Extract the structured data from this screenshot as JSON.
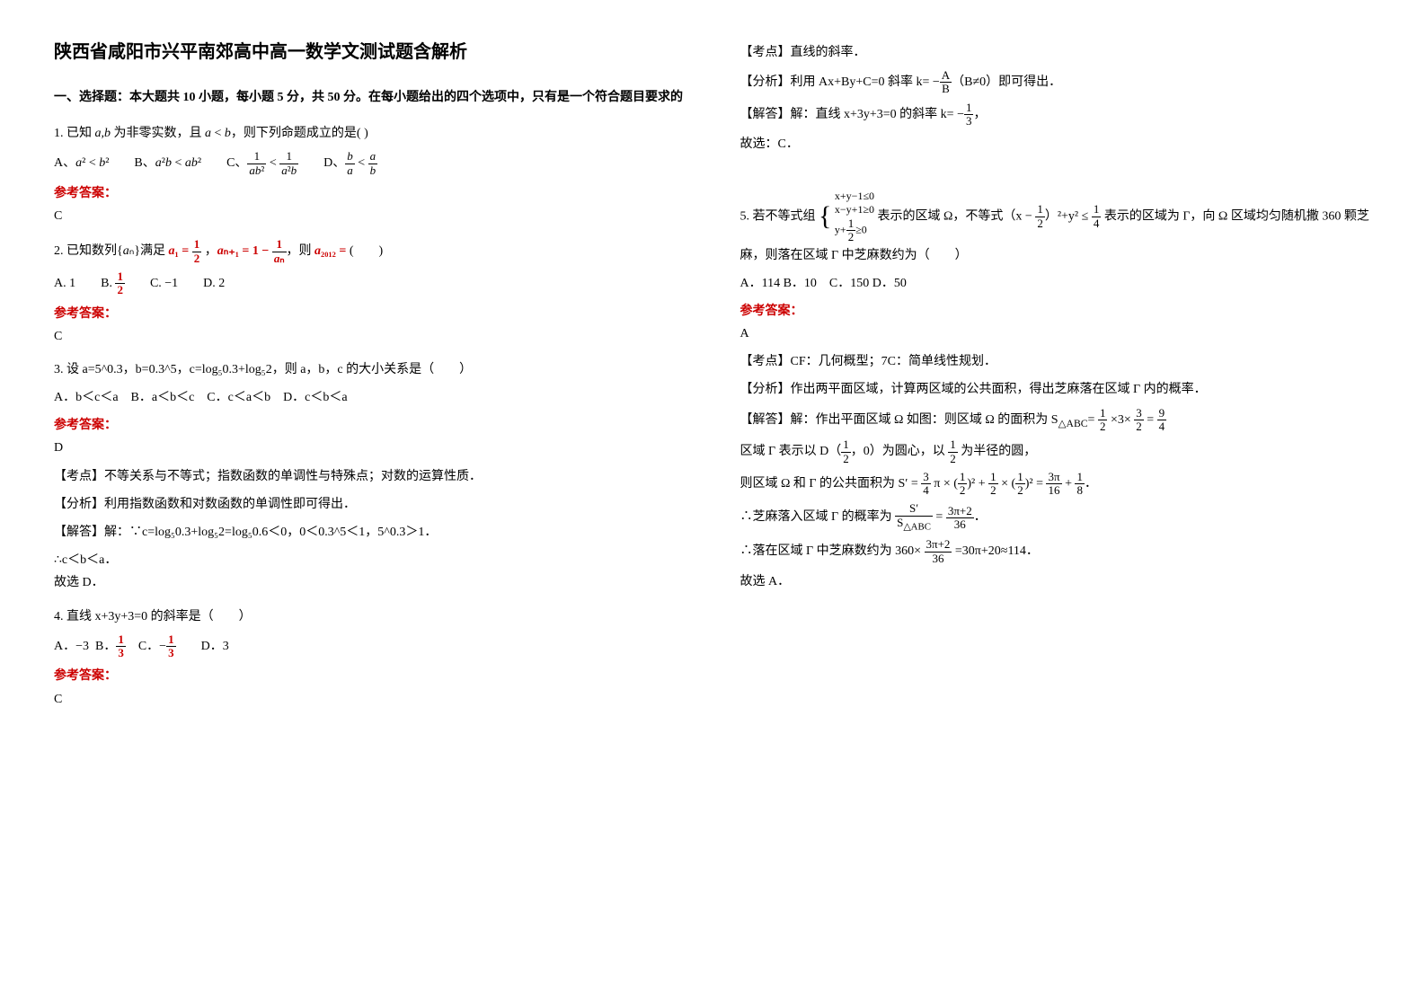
{
  "title": "陕西省咸阳市兴平南郊高中高一数学文测试题含解析",
  "section1": {
    "header": "一、选择题：本大题共 10 小题，每小题 5 分，共 50 分。在每小题给出的四个选项中，只有是一个符合题目要求的"
  },
  "q1": {
    "stem": "1. 已知 a,b 为非零实数，且 a < b，则下列命题成立的是(  )",
    "options": "A、a² < b²　　B、a²b < ab²　　C、1/ab² < 1/a²b　　D、b/a < a/b",
    "answer_label": "参考答案：",
    "answer": "C"
  },
  "q2": {
    "stem_prefix": "2. 已知数列{aₙ}满足 ",
    "formula": "a₁ = 1/2 , aₙ₊₁ = 1 − 1/aₙ",
    "stem_suffix": "，则 a₂₀₁₂ = (　　)",
    "options": "A. 1　　B. 1/2　　C. −1　　D. 2",
    "answer_label": "参考答案：",
    "answer": "C"
  },
  "q3": {
    "stem": "3. 设 a=5^0.3，b=0.3^5，c=log₅0.3+log₅2，则 a，b，c 的大小关系是（　　）",
    "options": "A．b＜c＜a　B．a＜b＜c　C．c＜a＜b　D．c＜b＜a",
    "answer_label": "参考答案：",
    "answer": "D",
    "kaodian": "【考点】不等关系与不等式；指数函数的单调性与特殊点；对数的运算性质．",
    "fenxi": "【分析】利用指数函数和对数函数的单调性即可得出．",
    "jieda1": "【解答】解：∵c=log₅0.3+log₅2=log₅0.6＜0，0＜0.3^5＜1，5^0.3＞1．",
    "jieda2": "∴c＜b＜a．",
    "jieda3": "故选 D．"
  },
  "q4": {
    "stem": "4. 直线 x+3y+3=0 的斜率是（　　）",
    "options": "A．−3  B．1/3　C．−1/3　　D．3",
    "answer_label": "参考答案：",
    "answer": "C",
    "kaodian": "【考点】直线的斜率．",
    "fenxi": "【分析】利用 Ax+By+C=0 斜率 k= −A/B（B≠0）即可得出．",
    "jieda1": "【解答】解：直线 x+3y+3=0 的斜率 k= −1/3，",
    "jieda2": "故选：C．"
  },
  "q5": {
    "stem_prefix": "5. 若不等式组 ",
    "system": "⎧ x+y−1≤0\n⎨ x−y+1≥0\n⎩ y+1/2≥0",
    "stem_mid": " 表示的区域 Ω，不等式（x − 1/2）²+y² ≤ 1/4 表示的区域为 Γ，向 Ω 区域均匀随机撒 360 颗芝麻，则落在区域 Γ 中芝麻数约为（　　）",
    "options": "A．114 B．10　C．150 D．50",
    "answer_label": "参考答案：",
    "answer": "A",
    "kaodian": "【考点】CF：几何概型；7C：简单线性规划．",
    "fenxi": "【分析】作出两平面区域，计算两区域的公共面积，得出芝麻落在区域 Γ 内的概率．",
    "jieda1": "【解答】解：作出平面区域 Ω 如图：则区域 Ω 的面积为 S△ABC = 1/2 × 3 × 3/2 = 9/4",
    "jieda2": "区域 Γ 表示以 D（1/2，0）为圆心，以 1/2 为半径的圆，",
    "jieda3": "则区域 Ω 和 Γ 的公共面积为 S′ = 3/4 π × (1/2)² + 1/2 × (1/2)² = 3π/16 + 1/8．",
    "jieda4": "∴芝麻落入区域 Γ 的概率为 S′/S△ABC = (3π+2)/36．",
    "jieda5": "∴落在区域 Γ 中芝麻数约为 360 × (3π+2)/36 =30π+20≈114．",
    "jieda6": "故选 A．"
  }
}
